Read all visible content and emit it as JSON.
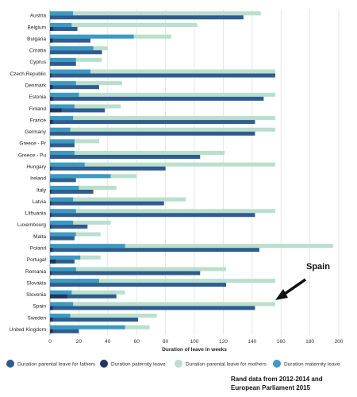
{
  "chart_data": {
    "type": "bar",
    "orientation": "horizontal",
    "xlabel": "Duration of leave in weeks",
    "xlim": [
      0,
      200
    ],
    "xticks": [
      0,
      20,
      40,
      60,
      80,
      100,
      120,
      140,
      160,
      180,
      200
    ],
    "grid": true,
    "legend_position": "bottom",
    "categories": [
      "Austria",
      "Belgium",
      "Bulgaria",
      "Croatia",
      "Cyprus",
      "Czech Republic",
      "Denmark",
      "Estonia",
      "Finland",
      "France",
      "Germany",
      "Greece - Pr",
      "Greece - Pu",
      "Hungary",
      "Ireland",
      "Italy",
      "Latvia",
      "Lithuania",
      "Luxembourg",
      "Malta",
      "Poland",
      "Portugal",
      "Romania",
      "Slovakia",
      "Slovenia",
      "Spain",
      "Sweden",
      "United Kingdom"
    ],
    "series": [
      {
        "name": "Duration parental leave for fathers",
        "color": "#2e5c8e",
        "values": [
          134,
          19,
          28,
          36,
          18,
          156,
          34,
          148,
          38,
          142,
          142,
          17,
          104,
          80,
          18,
          30,
          79,
          142,
          26,
          17,
          145,
          17,
          104,
          122,
          46,
          142,
          61,
          20
        ]
      },
      {
        "name": "Duration paternity leave",
        "color": "#223460",
        "values": [
          0,
          2,
          2,
          0,
          0,
          1,
          2,
          2,
          8,
          2,
          0,
          0,
          0,
          1,
          0,
          1,
          1,
          1,
          1,
          0,
          2,
          4,
          1,
          0,
          12,
          2,
          2,
          2
        ]
      },
      {
        "name": "Duration parental leave for mothers",
        "color": "#b9dfcd",
        "values": [
          146,
          102,
          84,
          40,
          36,
          156,
          50,
          156,
          49,
          156,
          156,
          34,
          121,
          156,
          60,
          46,
          94,
          156,
          42,
          35,
          196,
          35,
          122,
          156,
          52,
          156,
          74,
          69
        ]
      },
      {
        "name": "Duration maternity leave",
        "color": "#3b9ac4",
        "values": [
          16,
          15,
          58,
          30,
          18,
          28,
          18,
          20,
          17,
          16,
          14,
          17,
          17,
          24,
          42,
          20,
          16,
          18,
          16,
          18,
          52,
          21,
          18,
          34,
          15,
          16,
          14,
          52
        ]
      }
    ],
    "annotation": "Spain"
  },
  "source_note": {
    "line1": "Rand data from 2012-2014 and",
    "line2": "European Parliament 2015"
  }
}
